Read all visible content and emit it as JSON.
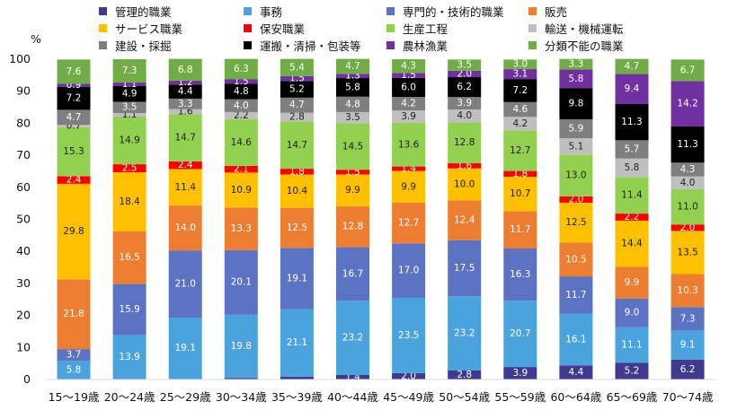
{
  "chart_data": {
    "type": "bar",
    "stacked": true,
    "ylabel": "%",
    "ylim": [
      0,
      100
    ],
    "yticks": [
      0,
      10,
      20,
      30,
      40,
      50,
      60,
      70,
      80,
      90,
      100
    ],
    "categories": [
      "15～19歳",
      "20～24歳",
      "25～29歳",
      "30～34歳",
      "35～39歳",
      "40～44歳",
      "45～49歳",
      "50～54歳",
      "55～59歳",
      "60～64歳",
      "65～69歳",
      "70～74歳"
    ],
    "legend_position": "top",
    "series": [
      {
        "name": "管理的職業",
        "color": "#3f3a8e",
        "values": [
          0,
          0,
          0.2,
          0.5,
          0.9,
          1.4,
          2.0,
          2.8,
          3.9,
          4.4,
          5.2,
          6.2
        ],
        "labels": [
          "",
          "",
          "",
          "",
          "",
          "1.4",
          "2.0",
          "2.8",
          "3.9",
          "4.4",
          "5.2",
          "6.2"
        ]
      },
      {
        "name": "事務",
        "color": "#4ba3dd",
        "values": [
          5.8,
          13.9,
          19.1,
          19.8,
          21.1,
          23.2,
          23.5,
          23.2,
          20.7,
          16.1,
          11.1,
          9.1
        ],
        "labels": [
          "5.8",
          "13.9",
          "19.1",
          "19.8",
          "21.1",
          "23.2",
          "23.5",
          "23.2",
          "20.7",
          "16.1",
          "11.1",
          "9.1"
        ]
      },
      {
        "name": "専門的・技術的職業",
        "color": "#5b73c2",
        "values": [
          3.7,
          15.9,
          21.0,
          20.1,
          19.1,
          16.7,
          17.0,
          17.5,
          16.3,
          11.7,
          9.0,
          7.3
        ],
        "labels": [
          "3.7",
          "15.9",
          "21.0",
          "20.1",
          "19.1",
          "16.7",
          "17.0",
          "17.5",
          "16.3",
          "11.7",
          "9.0",
          "7.3"
        ]
      },
      {
        "name": "販売",
        "color": "#ed7d31",
        "values": [
          21.8,
          16.5,
          14.0,
          13.3,
          12.5,
          12.8,
          12.7,
          12.4,
          11.7,
          10.5,
          9.9,
          10.3
        ],
        "labels": [
          "21.8",
          "16.5",
          "14.0",
          "13.3",
          "12.5",
          "12.8",
          "12.7",
          "12.4",
          "11.7",
          "10.5",
          "9.9",
          "10.3"
        ]
      },
      {
        "name": "サービス職業",
        "color": "#ffc000",
        "values": [
          29.8,
          18.4,
          11.4,
          10.9,
          10.4,
          9.9,
          9.9,
          10.0,
          10.7,
          12.5,
          14.4,
          13.5
        ],
        "labels": [
          "29.8",
          "18.4",
          "11.4",
          "10.9",
          "10.4",
          "9.9",
          "9.9",
          "10.0",
          "10.7",
          "12.5",
          "14.4",
          "13.5"
        ]
      },
      {
        "name": "保安職業",
        "color": "#ff0000",
        "values": [
          2.4,
          2.5,
          2.4,
          2.1,
          1.8,
          1.5,
          1.4,
          1.6,
          1.8,
          2.0,
          2.2,
          2.0
        ],
        "labels": [
          "2.4",
          "2.5",
          "2.4",
          "2.1",
          "1.8",
          "1.5",
          "1.4",
          "1.6",
          "1.8",
          "2.0",
          "2.2",
          "2.0"
        ]
      },
      {
        "name": "生産工程",
        "color": "#92d050",
        "values": [
          15.3,
          14.9,
          14.7,
          14.6,
          14.7,
          14.5,
          13.6,
          12.8,
          12.7,
          13.0,
          11.4,
          11.0
        ],
        "labels": [
          "15.3",
          "14.9",
          "14.7",
          "14.6",
          "14.7",
          "14.5",
          "13.6",
          "12.8",
          "12.7",
          "13.0",
          "11.4",
          "11.0"
        ]
      },
      {
        "name": "輸送・機械運転",
        "color": "#bfbfbf",
        "values": [
          0.7,
          1.1,
          1.6,
          2.2,
          2.8,
          3.5,
          3.9,
          4.0,
          4.2,
          5.1,
          5.8,
          4.0
        ],
        "labels": [
          "0.7",
          "1.1",
          "1.6",
          "2.2",
          "2.8",
          "3.5",
          "3.9",
          "4.0",
          "4.2",
          "5.1",
          "5.8",
          "4.0"
        ]
      },
      {
        "name": "建設・採掘",
        "color": "#7f7f7f",
        "values": [
          4.7,
          3.5,
          3.3,
          4.0,
          4.7,
          4.8,
          4.2,
          3.9,
          4.6,
          5.9,
          5.7,
          4.3
        ],
        "labels": [
          "4.7",
          "3.5",
          "3.3",
          "4.0",
          "4.7",
          "4.8",
          "4.2",
          "3.9",
          "4.6",
          "5.9",
          "5.7",
          "4.3"
        ]
      },
      {
        "name": "運搬・清掃・包装等",
        "color": "#000000",
        "values": [
          7.2,
          4.9,
          4.4,
          4.8,
          5.2,
          5.8,
          6.0,
          6.2,
          7.2,
          9.8,
          11.3,
          11.3
        ],
        "labels": [
          "7.2",
          "4.9",
          "4.4",
          "4.8",
          "5.2",
          "5.8",
          "6.0",
          "6.2",
          "7.2",
          "9.8",
          "11.3",
          "11.3"
        ]
      },
      {
        "name": "農林漁業",
        "color": "#7030a0",
        "values": [
          0.9,
          1.1,
          1.2,
          1.5,
          1.5,
          1.3,
          1.5,
          2.0,
          3.1,
          5.8,
          9.4,
          14.2
        ],
        "labels": [
          "0.9",
          "1.1",
          "1.2",
          "1.5",
          "1.5",
          "1.3",
          "1.5",
          "2.0",
          "3.1",
          "5.8",
          "9.4",
          "14.2"
        ]
      },
      {
        "name": "分類不能の職業",
        "color": "#70ad47",
        "values": [
          7.6,
          7.3,
          6.8,
          6.3,
          5.4,
          4.7,
          4.3,
          3.5,
          3.0,
          3.3,
          4.7,
          6.7
        ],
        "labels": [
          "7.6",
          "7.3",
          "6.8",
          "6.3",
          "5.4",
          "4.7",
          "4.3",
          "3.5",
          "3.0",
          "3.3",
          "4.7",
          "6.7"
        ]
      }
    ]
  }
}
